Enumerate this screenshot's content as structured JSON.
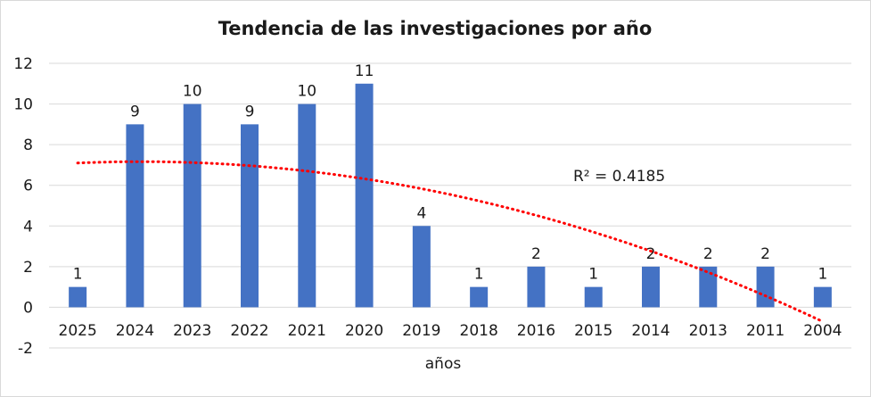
{
  "chart_data": {
    "type": "bar",
    "title": "Tendencia de las investigaciones por año",
    "xlabel": "años",
    "ylabel": "",
    "categories": [
      "2025",
      "2024",
      "2023",
      "2022",
      "2021",
      "2020",
      "2019",
      "2018",
      "2016",
      "2015",
      "2014",
      "2013",
      "2011",
      "2004"
    ],
    "values": [
      1,
      9,
      10,
      9,
      10,
      11,
      4,
      1,
      2,
      1,
      2,
      2,
      2,
      1
    ],
    "ylim": [
      -2,
      12
    ],
    "yticks": [
      "-2",
      "0",
      "2",
      "4",
      "6",
      "8",
      "10",
      "12"
    ],
    "grid": true,
    "legend": "none",
    "bar_color": "#4472c4",
    "trendline": {
      "type": "polynomial",
      "color": "#ff0000",
      "style": "dotted",
      "r2_label": "R² = 0.4185"
    }
  }
}
